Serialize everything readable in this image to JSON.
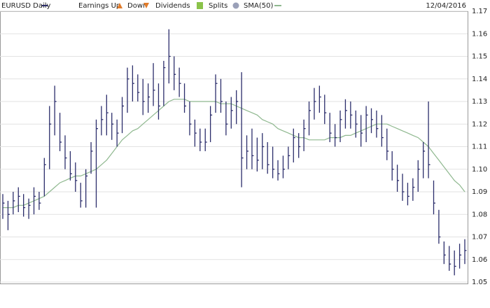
{
  "chart_data": {
    "type": "ohlc",
    "date": "12/04/2016",
    "legend": {
      "earnings_up": "Earnings Up",
      "earnings_down": "Down",
      "dividends": "Dividends",
      "splits": "Splits"
    },
    "ylim": [
      1.05,
      1.17
    ],
    "yticks": [
      1.05,
      1.06,
      1.07,
      1.08,
      1.09,
      {
        "value": 1.1,
        "label": "1.10"
      },
      1.11,
      1.12,
      1.13,
      1.14,
      1.15,
      1.16,
      1.17
    ],
    "grid": true,
    "series": [
      {
        "name": "EURUSD Daily",
        "color": "#2b2d6b",
        "high": [
          1.089,
          1.086,
          1.09,
          1.092,
          1.089,
          1.087,
          1.092,
          1.09,
          1.105,
          1.128,
          1.137,
          1.125,
          1.115,
          1.108,
          1.103,
          1.094,
          1.1,
          1.112,
          1.122,
          1.128,
          1.133,
          1.125,
          1.122,
          1.132,
          1.145,
          1.146,
          1.142,
          1.14,
          1.138,
          1.147,
          1.138,
          1.148,
          1.162,
          1.15,
          1.145,
          1.138,
          1.13,
          1.122,
          1.118,
          1.118,
          1.128,
          1.142,
          1.14,
          1.13,
          1.132,
          1.135,
          1.143,
          1.115,
          1.118,
          1.114,
          1.116,
          1.112,
          1.11,
          1.104,
          1.106,
          1.11,
          1.118,
          1.116,
          1.122,
          1.13,
          1.136,
          1.137,
          1.133,
          1.125,
          1.12,
          1.126,
          1.131,
          1.13,
          1.126,
          1.124,
          1.128,
          1.127,
          1.126,
          1.124,
          1.118,
          1.108,
          1.102,
          1.098,
          1.094,
          1.096,
          1.104,
          1.112,
          1.13,
          1.095,
          1.082,
          1.068,
          1.066,
          1.064,
          1.067,
          1.069
        ],
        "low": [
          1.078,
          1.073,
          1.08,
          1.081,
          1.079,
          1.078,
          1.08,
          1.082,
          1.088,
          1.1,
          1.115,
          1.108,
          1.1,
          1.095,
          1.09,
          1.083,
          1.083,
          1.098,
          1.083,
          1.115,
          1.115,
          1.113,
          1.11,
          1.116,
          1.125,
          1.13,
          1.13,
          1.124,
          1.125,
          1.128,
          1.122,
          1.128,
          1.138,
          1.135,
          1.132,
          1.125,
          1.115,
          1.11,
          1.108,
          1.108,
          1.112,
          1.125,
          1.125,
          1.115,
          1.118,
          1.12,
          1.092,
          1.1,
          1.1,
          1.099,
          1.1,
          1.098,
          1.096,
          1.095,
          1.096,
          1.1,
          1.103,
          1.105,
          1.108,
          1.115,
          1.122,
          1.125,
          1.12,
          1.112,
          1.11,
          1.112,
          1.118,
          1.118,
          1.114,
          1.11,
          1.112,
          1.116,
          1.114,
          1.11,
          1.104,
          1.095,
          1.09,
          1.086,
          1.084,
          1.086,
          1.09,
          1.096,
          1.096,
          1.08,
          1.067,
          1.058,
          1.055,
          1.053,
          1.056,
          1.058
        ],
        "close": [
          1.085,
          1.08,
          1.086,
          1.088,
          1.083,
          1.084,
          1.088,
          1.085,
          1.102,
          1.12,
          1.13,
          1.112,
          1.105,
          1.098,
          1.095,
          1.086,
          1.097,
          1.108,
          1.118,
          1.122,
          1.125,
          1.12,
          1.116,
          1.128,
          1.14,
          1.138,
          1.134,
          1.13,
          1.132,
          1.135,
          1.128,
          1.145,
          1.15,
          1.142,
          1.138,
          1.128,
          1.12,
          1.116,
          1.112,
          1.112,
          1.124,
          1.138,
          1.13,
          1.12,
          1.126,
          1.13,
          1.105,
          1.108,
          1.106,
          1.104,
          1.11,
          1.102,
          1.1,
          1.098,
          1.1,
          1.106,
          1.114,
          1.11,
          1.118,
          1.126,
          1.13,
          1.132,
          1.125,
          1.116,
          1.114,
          1.122,
          1.126,
          1.124,
          1.12,
          1.116,
          1.124,
          1.122,
          1.118,
          1.114,
          1.108,
          1.1,
          1.095,
          1.09,
          1.088,
          1.092,
          1.1,
          1.108,
          1.102,
          1.085,
          1.07,
          1.062,
          1.058,
          1.057,
          1.062,
          1.064
        ]
      }
    ],
    "sma": {
      "name": "SMA(50)",
      "color": "#8fb88f",
      "values": [
        1.083,
        1.083,
        1.083,
        1.084,
        1.084,
        1.085,
        1.086,
        1.087,
        1.088,
        1.09,
        1.092,
        1.094,
        1.095,
        1.096,
        1.097,
        1.097,
        1.098,
        1.099,
        1.1,
        1.102,
        1.104,
        1.107,
        1.11,
        1.113,
        1.115,
        1.117,
        1.118,
        1.12,
        1.122,
        1.124,
        1.126,
        1.128,
        1.13,
        1.131,
        1.131,
        1.131,
        1.13,
        1.13,
        1.13,
        1.13,
        1.13,
        1.13,
        1.129,
        1.129,
        1.129,
        1.128,
        1.127,
        1.126,
        1.125,
        1.124,
        1.122,
        1.121,
        1.12,
        1.118,
        1.117,
        1.116,
        1.115,
        1.114,
        1.114,
        1.113,
        1.113,
        1.113,
        1.113,
        1.114,
        1.114,
        1.114,
        1.115,
        1.115,
        1.116,
        1.117,
        1.118,
        1.119,
        1.12,
        1.12,
        1.12,
        1.119,
        1.118,
        1.117,
        1.116,
        1.115,
        1.114,
        1.112,
        1.11,
        1.107,
        1.104,
        1.101,
        1.098,
        1.095,
        1.093,
        1.09
      ]
    }
  }
}
